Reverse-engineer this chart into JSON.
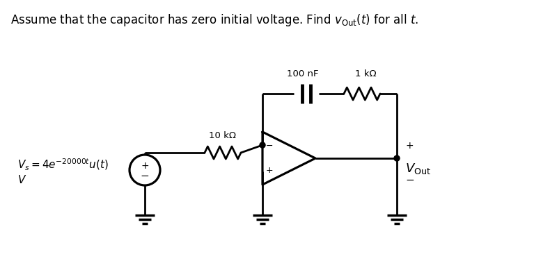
{
  "bg_color": "#ffffff",
  "line_color": "#000000",
  "lw": 2.0,
  "r1_label": "10 kΩ",
  "r2_label": "1 kΩ",
  "c_label": "100 nF",
  "title": "Assume that the capacitor has zero initial voltage. Find $v_{\\mathrm{Out}}(t)$ for all $t$.",
  "title_fontsize": 12,
  "vs_fontsize": 11,
  "label_fontsize": 9.5,
  "vout_fontsize": 13
}
